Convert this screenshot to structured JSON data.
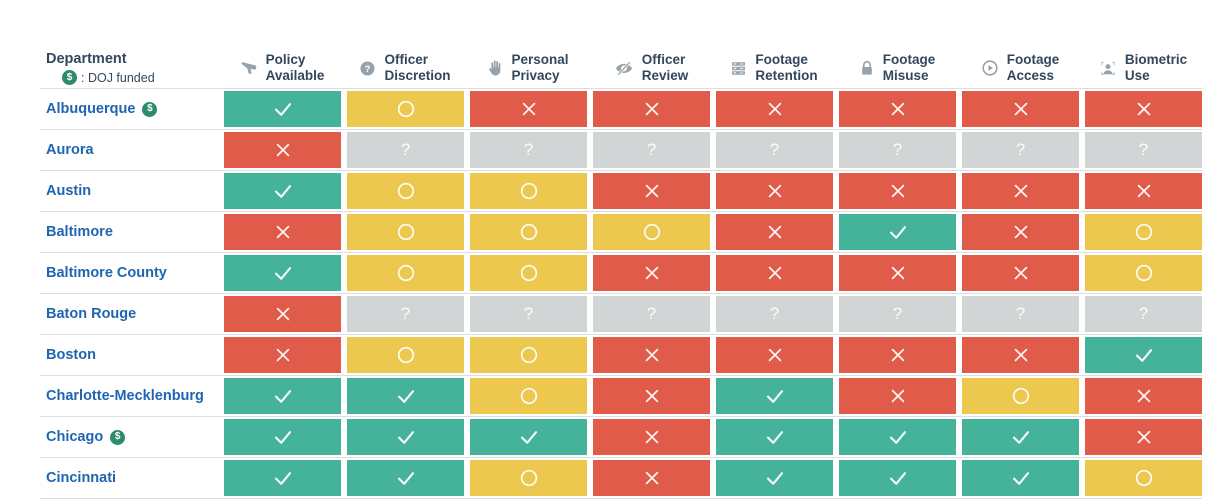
{
  "header": {
    "department_label": "Department",
    "doj_badge": "$",
    "doj_note": ": DOJ funded"
  },
  "rating_glyphs": {
    "check": "✓",
    "circle": "○",
    "x": "✗",
    "unknown": "?"
  },
  "colors": {
    "check_bg": "#45b29a",
    "circle_bg": "#ecc84f",
    "x_bg": "#e05b49",
    "unknown_bg": "#d2d5d6",
    "header_text": "#33475c",
    "department_link": "#2065b1",
    "doj_icon_green": "#2e8a6d",
    "icon_gray": "#98a2aa",
    "row_divider": "#d9dfe3"
  },
  "chart_data": {
    "type": "table",
    "columns": [
      {
        "label": "Policy Available",
        "label_lines": [
          "Policy",
          "Available"
        ],
        "icon": "megaphone-icon"
      },
      {
        "label": "Officer Discretion",
        "label_lines": [
          "Officer",
          "Discretion"
        ],
        "icon": "question-circle-icon"
      },
      {
        "label": "Personal Privacy",
        "label_lines": [
          "Personal",
          "Privacy"
        ],
        "icon": "hand-icon"
      },
      {
        "label": "Officer Review",
        "label_lines": [
          "Officer",
          "Review"
        ],
        "icon": "eye-slash-icon"
      },
      {
        "label": "Footage Retention",
        "label_lines": [
          "Footage",
          "Retention"
        ],
        "icon": "server-icon"
      },
      {
        "label": "Footage Misuse",
        "label_lines": [
          "Footage",
          "Misuse"
        ],
        "icon": "lock-icon"
      },
      {
        "label": "Footage Access",
        "label_lines": [
          "Footage",
          "Access"
        ],
        "icon": "play-circle-icon"
      },
      {
        "label": "Biometric Use",
        "label_lines": [
          "Biometric",
          "Use"
        ],
        "icon": "biometric-icon"
      }
    ],
    "rows": [
      {
        "department": "Albuquerque",
        "doj_funded": true,
        "ratings": [
          "check",
          "circle",
          "x",
          "x",
          "x",
          "x",
          "x",
          "x"
        ]
      },
      {
        "department": "Aurora",
        "doj_funded": false,
        "ratings": [
          "x",
          "unknown",
          "unknown",
          "unknown",
          "unknown",
          "unknown",
          "unknown",
          "unknown"
        ]
      },
      {
        "department": "Austin",
        "doj_funded": false,
        "ratings": [
          "check",
          "circle",
          "circle",
          "x",
          "x",
          "x",
          "x",
          "x"
        ]
      },
      {
        "department": "Baltimore",
        "doj_funded": false,
        "ratings": [
          "x",
          "circle",
          "circle",
          "circle",
          "x",
          "check",
          "x",
          "circle"
        ]
      },
      {
        "department": "Baltimore County",
        "doj_funded": false,
        "ratings": [
          "check",
          "circle",
          "circle",
          "x",
          "x",
          "x",
          "x",
          "circle"
        ]
      },
      {
        "department": "Baton Rouge",
        "doj_funded": false,
        "ratings": [
          "x",
          "unknown",
          "unknown",
          "unknown",
          "unknown",
          "unknown",
          "unknown",
          "unknown"
        ]
      },
      {
        "department": "Boston",
        "doj_funded": false,
        "ratings": [
          "x",
          "circle",
          "circle",
          "x",
          "x",
          "x",
          "x",
          "check"
        ]
      },
      {
        "department": "Charlotte-Mecklenburg",
        "doj_funded": false,
        "ratings": [
          "check",
          "check",
          "circle",
          "x",
          "check",
          "x",
          "circle",
          "x"
        ]
      },
      {
        "department": "Chicago",
        "doj_funded": true,
        "ratings": [
          "check",
          "check",
          "check",
          "x",
          "check",
          "check",
          "check",
          "x"
        ]
      },
      {
        "department": "Cincinnati",
        "doj_funded": false,
        "ratings": [
          "check",
          "check",
          "circle",
          "x",
          "check",
          "check",
          "check",
          "circle"
        ]
      }
    ]
  }
}
